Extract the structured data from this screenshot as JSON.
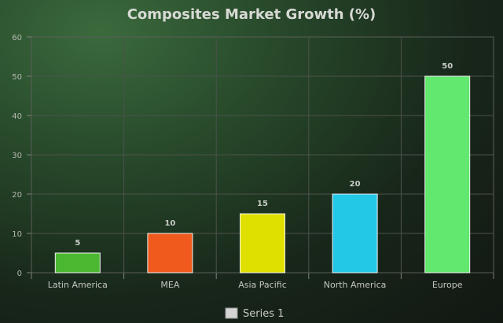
{
  "chart_data": {
    "type": "bar",
    "title": "Composites Market Growth (%)",
    "categories": [
      "Latin America",
      "MEA",
      "Asia Pacific",
      "North America",
      "Europe"
    ],
    "series": [
      {
        "name": "Series 1",
        "values": [
          5,
          10,
          15,
          20,
          50
        ]
      }
    ],
    "bar_colors": [
      "#4cb832",
      "#f05a1c",
      "#e0e000",
      "#22c8e6",
      "#62e86e"
    ],
    "legend_swatch_color": "#d4d4d4",
    "ylim": [
      0,
      60
    ],
    "yticks": [
      0,
      10,
      20,
      30,
      40,
      50,
      60
    ],
    "grid": true,
    "legend_position": "bottom",
    "data_labels": true
  }
}
